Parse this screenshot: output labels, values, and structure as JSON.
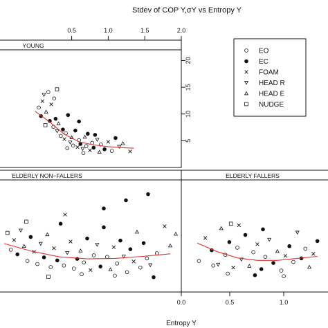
{
  "chart_data": {
    "type": "scatter",
    "title": "Stdev of COP Y,σY vs Entropy Y",
    "xlabel": "Entropy Y",
    "ylabel": "",
    "x_ticks_top": [
      "0.5",
      "1.0",
      "1.5",
      "2.0"
    ],
    "x_ticks_bottom": [
      "0.0",
      "0.5",
      "1.0"
    ],
    "y_ticks_right": [
      "5",
      "10",
      "15",
      "20"
    ],
    "xlim": [
      0,
      2
    ],
    "ylim": [
      0,
      22
    ],
    "legend_placement": "right",
    "series": [
      {
        "name": "EO",
        "marker": "open-circle"
      },
      {
        "name": "EC",
        "marker": "filled-circle"
      },
      {
        "name": "FOAM",
        "marker": "cross"
      },
      {
        "name": "HEAD R",
        "marker": "triangle-down"
      },
      {
        "name": "HEAD E",
        "marker": "triangle-up"
      },
      {
        "name": "NUDGE",
        "marker": "square"
      }
    ],
    "panels": [
      {
        "label": "YOUNG",
        "trend": [
          [
            0.0,
            10.5
          ],
          [
            0.2,
            8.5
          ],
          [
            0.4,
            6.2
          ],
          [
            0.6,
            4.8
          ],
          [
            0.8,
            4.2
          ],
          [
            1.0,
            3.9
          ],
          [
            1.2,
            3.7
          ],
          [
            1.35,
            3.6
          ]
        ],
        "points": [
          {
            "x": 0.05,
            "y": 11.2,
            "s": 0
          },
          {
            "x": 0.08,
            "y": 9.6,
            "s": 1
          },
          {
            "x": 0.1,
            "y": 12.4,
            "s": 2
          },
          {
            "x": 0.12,
            "y": 13.6,
            "s": 3
          },
          {
            "x": 0.15,
            "y": 10.4,
            "s": 4
          },
          {
            "x": 0.18,
            "y": 14.1,
            "s": 0
          },
          {
            "x": 0.2,
            "y": 8.7,
            "s": 1
          },
          {
            "x": 0.22,
            "y": 11.8,
            "s": 2
          },
          {
            "x": 0.25,
            "y": 7.6,
            "s": 0
          },
          {
            "x": 0.28,
            "y": 9.1,
            "s": 1
          },
          {
            "x": 0.3,
            "y": 6.8,
            "s": 3
          },
          {
            "x": 0.32,
            "y": 8.2,
            "s": 4
          },
          {
            "x": 0.35,
            "y": 5.9,
            "s": 0
          },
          {
            "x": 0.38,
            "y": 7.1,
            "s": 1
          },
          {
            "x": 0.4,
            "y": 5.3,
            "s": 2
          },
          {
            "x": 0.42,
            "y": 6.4,
            "s": 0
          },
          {
            "x": 0.45,
            "y": 9.8,
            "s": 1
          },
          {
            "x": 0.48,
            "y": 4.7,
            "s": 3
          },
          {
            "x": 0.5,
            "y": 5.6,
            "s": 4
          },
          {
            "x": 0.52,
            "y": 4.1,
            "s": 0
          },
          {
            "x": 0.55,
            "y": 6.9,
            "s": 1
          },
          {
            "x": 0.58,
            "y": 3.8,
            "s": 2
          },
          {
            "x": 0.6,
            "y": 5.1,
            "s": 0
          },
          {
            "x": 0.62,
            "y": 4.4,
            "s": 1
          },
          {
            "x": 0.65,
            "y": 3.5,
            "s": 3
          },
          {
            "x": 0.68,
            "y": 5.7,
            "s": 4
          },
          {
            "x": 0.7,
            "y": 4.0,
            "s": 0
          },
          {
            "x": 0.72,
            "y": 6.3,
            "s": 1
          },
          {
            "x": 0.75,
            "y": 3.2,
            "s": 2
          },
          {
            "x": 0.78,
            "y": 4.6,
            "s": 0
          },
          {
            "x": 0.8,
            "y": 3.7,
            "s": 1
          },
          {
            "x": 0.85,
            "y": 5.2,
            "s": 3
          },
          {
            "x": 0.88,
            "y": 2.9,
            "s": 4
          },
          {
            "x": 0.9,
            "y": 4.3,
            "s": 0
          },
          {
            "x": 0.95,
            "y": 3.4,
            "s": 1
          },
          {
            "x": 1.0,
            "y": 4.8,
            "s": 2
          },
          {
            "x": 1.05,
            "y": 3.1,
            "s": 0
          },
          {
            "x": 1.1,
            "y": 5.5,
            "s": 1
          },
          {
            "x": 1.15,
            "y": 3.9,
            "s": 3
          },
          {
            "x": 1.2,
            "y": 4.5,
            "s": 4
          },
          {
            "x": 1.3,
            "y": 3.0,
            "s": 2
          },
          {
            "x": 0.3,
            "y": 14.6,
            "s": 5
          },
          {
            "x": 0.14,
            "y": 7.9,
            "s": 5
          },
          {
            "x": 0.6,
            "y": 8.6,
            "s": 1
          },
          {
            "x": 0.82,
            "y": 6.1,
            "s": 1
          },
          {
            "x": 0.26,
            "y": 12.9,
            "s": 0
          },
          {
            "x": 0.44,
            "y": 3.6,
            "s": 0
          },
          {
            "x": 0.66,
            "y": 2.7,
            "s": 0
          }
        ]
      },
      {
        "label": "ELDERLY NON−FALLERS",
        "trend": [
          [
            0.0,
            9.5
          ],
          [
            0.25,
            8.0
          ],
          [
            0.5,
            6.9
          ],
          [
            0.75,
            6.5
          ],
          [
            1.0,
            6.6
          ],
          [
            1.25,
            7.0
          ],
          [
            1.5,
            7.5
          ]
        ],
        "points": [
          {
            "x": 0.03,
            "y": 11.6,
            "s": 5
          },
          {
            "x": 0.06,
            "y": 8.3,
            "s": 0
          },
          {
            "x": 0.09,
            "y": 10.2,
            "s": 2
          },
          {
            "x": 0.12,
            "y": 7.4,
            "s": 1
          },
          {
            "x": 0.15,
            "y": 12.1,
            "s": 3
          },
          {
            "x": 0.18,
            "y": 9.0,
            "s": 4
          },
          {
            "x": 0.21,
            "y": 6.1,
            "s": 0
          },
          {
            "x": 0.24,
            "y": 10.8,
            "s": 1
          },
          {
            "x": 0.27,
            "y": 7.9,
            "s": 2
          },
          {
            "x": 0.3,
            "y": 5.5,
            "s": 0
          },
          {
            "x": 0.33,
            "y": 9.5,
            "s": 3
          },
          {
            "x": 0.36,
            "y": 6.8,
            "s": 1
          },
          {
            "x": 0.39,
            "y": 11.3,
            "s": 4
          },
          {
            "x": 0.42,
            "y": 4.9,
            "s": 0
          },
          {
            "x": 0.45,
            "y": 8.6,
            "s": 2
          },
          {
            "x": 0.48,
            "y": 6.2,
            "s": 1
          },
          {
            "x": 0.51,
            "y": 13.4,
            "s": 1
          },
          {
            "x": 0.54,
            "y": 5.2,
            "s": 0
          },
          {
            "x": 0.57,
            "y": 7.7,
            "s": 3
          },
          {
            "x": 0.6,
            "y": 9.9,
            "s": 2
          },
          {
            "x": 0.63,
            "y": 4.6,
            "s": 0
          },
          {
            "x": 0.66,
            "y": 6.5,
            "s": 1
          },
          {
            "x": 0.69,
            "y": 8.1,
            "s": 4
          },
          {
            "x": 0.72,
            "y": 5.8,
            "s": 0
          },
          {
            "x": 0.75,
            "y": 10.5,
            "s": 1
          },
          {
            "x": 0.78,
            "y": 4.3,
            "s": 2
          },
          {
            "x": 0.81,
            "y": 7.2,
            "s": 0
          },
          {
            "x": 0.84,
            "y": 9.3,
            "s": 3
          },
          {
            "x": 0.87,
            "y": 5.0,
            "s": 1
          },
          {
            "x": 0.9,
            "y": 12.7,
            "s": 1
          },
          {
            "x": 0.93,
            "y": 6.9,
            "s": 0
          },
          {
            "x": 0.96,
            "y": 4.4,
            "s": 4
          },
          {
            "x": 0.99,
            "y": 8.8,
            "s": 2
          },
          {
            "x": 1.02,
            "y": 5.6,
            "s": 0
          },
          {
            "x": 1.05,
            "y": 10.1,
            "s": 1
          },
          {
            "x": 1.08,
            "y": 7.0,
            "s": 3
          },
          {
            "x": 1.11,
            "y": 3.9,
            "s": 0
          },
          {
            "x": 1.14,
            "y": 8.4,
            "s": 1
          },
          {
            "x": 1.17,
            "y": 6.0,
            "s": 2
          },
          {
            "x": 1.2,
            "y": 11.8,
            "s": 4
          },
          {
            "x": 1.23,
            "y": 4.8,
            "s": 0
          },
          {
            "x": 1.26,
            "y": 9.6,
            "s": 1
          },
          {
            "x": 1.29,
            "y": 6.6,
            "s": 0
          },
          {
            "x": 1.32,
            "y": 5.3,
            "s": 3
          },
          {
            "x": 1.38,
            "y": 7.6,
            "s": 0
          },
          {
            "x": 1.45,
            "y": 12.9,
            "s": 2
          },
          {
            "x": 1.5,
            "y": 9.1,
            "s": 4
          },
          {
            "x": 1.55,
            "y": 11.4,
            "s": 4
          },
          {
            "x": 0.9,
            "y": 16.4,
            "s": 1
          },
          {
            "x": 1.1,
            "y": 18.0,
            "s": 1
          },
          {
            "x": 1.3,
            "y": 19.2,
            "s": 1
          },
          {
            "x": 0.55,
            "y": 15.2,
            "s": 2
          },
          {
            "x": 0.2,
            "y": 13.8,
            "s": 5
          },
          {
            "x": 0.7,
            "y": 3.5,
            "s": 0
          },
          {
            "x": 1.0,
            "y": 3.2,
            "s": 0
          },
          {
            "x": 0.4,
            "y": 3.0,
            "s": 5
          },
          {
            "x": 1.35,
            "y": 2.9,
            "s": 1
          }
        ]
      },
      {
        "label": "ELDERLY FALLERS",
        "trend": [
          [
            0.2,
            9.6
          ],
          [
            0.45,
            7.9
          ],
          [
            0.7,
            6.7
          ],
          [
            0.95,
            6.2
          ],
          [
            1.2,
            6.2
          ],
          [
            1.45,
            6.6
          ],
          [
            1.7,
            7.0
          ]
        ],
        "points": [
          {
            "x": 0.22,
            "y": 6.1,
            "s": 0
          },
          {
            "x": 0.3,
            "y": 10.6,
            "s": 2
          },
          {
            "x": 0.38,
            "y": 8.2,
            "s": 1
          },
          {
            "x": 0.46,
            "y": 5.4,
            "s": 3
          },
          {
            "x": 0.5,
            "y": 12.5,
            "s": 4
          },
          {
            "x": 0.55,
            "y": 7.3,
            "s": 0
          },
          {
            "x": 0.6,
            "y": 9.8,
            "s": 1
          },
          {
            "x": 0.65,
            "y": 4.8,
            "s": 2
          },
          {
            "x": 0.7,
            "y": 8.7,
            "s": 0
          },
          {
            "x": 0.75,
            "y": 6.4,
            "s": 3
          },
          {
            "x": 0.8,
            "y": 11.2,
            "s": 1
          },
          {
            "x": 0.85,
            "y": 5.1,
            "s": 4
          },
          {
            "x": 0.9,
            "y": 7.8,
            "s": 0
          },
          {
            "x": 0.95,
            "y": 9.4,
            "s": 2
          },
          {
            "x": 1.0,
            "y": 4.5,
            "s": 1
          },
          {
            "x": 1.05,
            "y": 6.9,
            "s": 0
          },
          {
            "x": 1.1,
            "y": 10.3,
            "s": 3
          },
          {
            "x": 1.15,
            "y": 5.7,
            "s": 1
          },
          {
            "x": 1.2,
            "y": 8.0,
            "s": 4
          },
          {
            "x": 1.25,
            "y": 4.2,
            "s": 0
          },
          {
            "x": 1.3,
            "y": 7.1,
            "s": 2
          },
          {
            "x": 1.35,
            "y": 9.0,
            "s": 1
          },
          {
            "x": 1.4,
            "y": 5.9,
            "s": 0
          },
          {
            "x": 1.45,
            "y": 11.7,
            "s": 3
          },
          {
            "x": 1.5,
            "y": 6.6,
            "s": 1
          },
          {
            "x": 1.55,
            "y": 8.5,
            "s": 0
          },
          {
            "x": 1.6,
            "y": 4.9,
            "s": 4
          },
          {
            "x": 1.65,
            "y": 7.5,
            "s": 2
          },
          {
            "x": 1.7,
            "y": 10.0,
            "s": 1
          },
          {
            "x": 0.72,
            "y": 13.1,
            "s": 2
          },
          {
            "x": 0.62,
            "y": 13.4,
            "s": 5
          },
          {
            "x": 1.02,
            "y": 12.3,
            "s": 1
          },
          {
            "x": 0.58,
            "y": 3.6,
            "s": 0
          },
          {
            "x": 0.92,
            "y": 3.3,
            "s": 1
          },
          {
            "x": 1.28,
            "y": 3.1,
            "s": 0
          },
          {
            "x": 0.4,
            "y": 5.2,
            "s": 0
          }
        ]
      }
    ]
  }
}
